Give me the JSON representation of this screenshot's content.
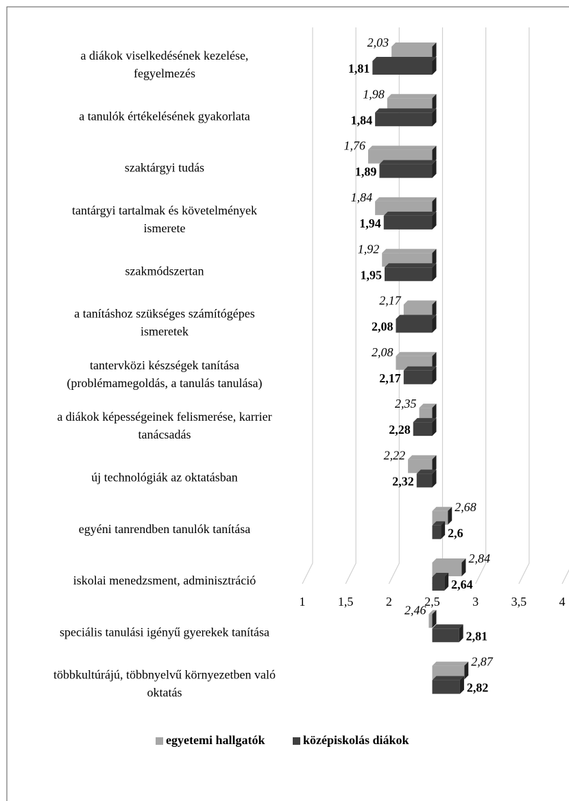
{
  "chart_data": {
    "type": "bar",
    "orientation": "horizontal",
    "origin": 2.5,
    "categories": [
      [
        "a diákok viselkedésének kezelése,",
        "fegyelmezés"
      ],
      [
        "a tanulók értékelésének gyakorlata"
      ],
      [
        "szaktárgyi tudás"
      ],
      [
        "tantárgyi tartalmak és követelmények",
        "ismerete"
      ],
      [
        "szakmódszertan"
      ],
      [
        "a tanításhoz szükséges számítógépes",
        "ismeretek"
      ],
      [
        "tantervközi készségek tanítása",
        "(problémamegoldás, a tanulás tanulása)"
      ],
      [
        "a diákok képességeinek felismerése, karrier",
        "tanácsadás"
      ],
      [
        "új technológiák az oktatásban"
      ],
      [
        "egyéni tanrendben tanulók tanítása"
      ],
      [
        "iskolai menedzsment, adminisztráció"
      ],
      [
        "speciális tanulási igényű gyerekek tanítása"
      ],
      [
        "többkultúrájú, többnyelvű környezetben való",
        "oktatás"
      ]
    ],
    "series": [
      {
        "name": "egyetemi hallgatók",
        "color": "#a6a6a6",
        "values": [
          2.03,
          1.98,
          1.76,
          1.84,
          1.92,
          2.17,
          2.08,
          2.35,
          2.22,
          2.68,
          2.84,
          2.46,
          2.87
        ],
        "value_labels": [
          "2,03",
          "1,98",
          "1,76",
          "1,84",
          "1,92",
          "2,17",
          "2,08",
          "2,35",
          "2,22",
          "2,68",
          "2,84",
          "2,46",
          "2,87"
        ]
      },
      {
        "name": "középiskolás diákok",
        "color": "#404040",
        "values": [
          1.81,
          1.84,
          1.89,
          1.94,
          1.95,
          2.08,
          2.17,
          2.28,
          2.32,
          2.6,
          2.64,
          2.81,
          2.82
        ],
        "value_labels": [
          "1,81",
          "1,84",
          "1,89",
          "1,94",
          "1,95",
          "2,08",
          "2,17",
          "2,28",
          "2,32",
          "2,6",
          "2,64",
          "2,81",
          "2,82"
        ]
      }
    ],
    "xlim": [
      1,
      4
    ],
    "xticks": [
      1,
      {
        "value": 1.5,
        "label": "1,5"
      },
      2,
      {
        "value": 2.5,
        "label": "2,5"
      },
      3,
      {
        "value": 3.5,
        "label": "3,5"
      },
      4
    ],
    "grid": true,
    "legend": "bottom"
  }
}
